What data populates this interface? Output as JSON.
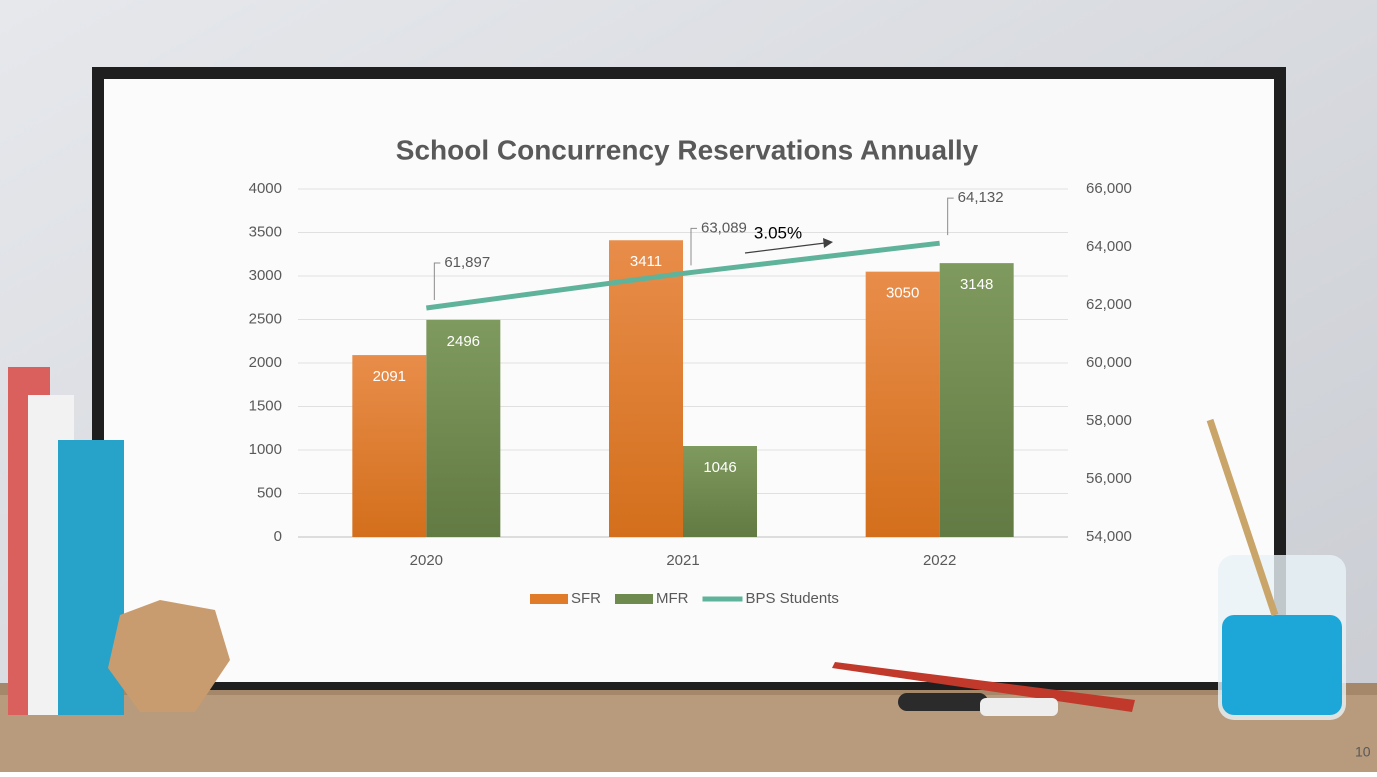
{
  "chart_data": {
    "type": "bar",
    "title": "School Concurrency Reservations Annually",
    "categories": [
      "2020",
      "2021",
      "2022"
    ],
    "series": [
      {
        "name": "SFR",
        "color": "#e07b2a",
        "values": [
          2091,
          3411,
          3050
        ]
      },
      {
        "name": "MFR",
        "color": "#6f8a4f",
        "values": [
          2496,
          1046,
          3148
        ]
      },
      {
        "name": "BPS Students",
        "color": "#5fb39a",
        "type": "line",
        "axis": "y2",
        "values": [
          61897,
          63089,
          64132
        ],
        "value_labels": [
          "61,897",
          "63,089",
          "64,132"
        ]
      }
    ],
    "ylim": [
      0,
      4000
    ],
    "yticks": [
      0,
      500,
      1000,
      1500,
      2000,
      2500,
      3000,
      3500,
      4000
    ],
    "y2lim": [
      54000,
      66000
    ],
    "y2ticks": [
      {
        "value": 54000,
        "label": "54,000"
      },
      {
        "value": 56000,
        "label": "56,000"
      },
      {
        "value": 58000,
        "label": "58,000"
      },
      {
        "value": 60000,
        "label": "60,000"
      },
      {
        "value": 62000,
        "label": "62,000"
      },
      {
        "value": 64000,
        "label": "64,000"
      },
      {
        "value": 66000,
        "label": "66,000"
      }
    ],
    "grid": true,
    "legend": "bottom",
    "annotation": "3.05%"
  },
  "page_number": "10"
}
